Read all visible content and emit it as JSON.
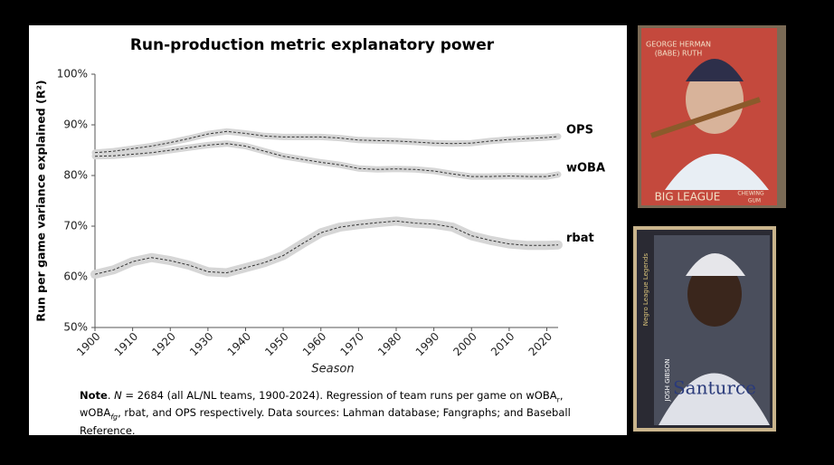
{
  "chart_data": {
    "type": "line",
    "title": "Run-production metric explanatory power",
    "x_label": "Season",
    "y_label": "Run per game variance explained (R²)",
    "x": [
      1900,
      1905,
      1910,
      1915,
      1920,
      1925,
      1930,
      1935,
      1940,
      1945,
      1950,
      1955,
      1960,
      1965,
      1970,
      1975,
      1980,
      1985,
      1990,
      1995,
      2000,
      2005,
      2010,
      2015,
      2020,
      2023
    ],
    "series": [
      {
        "name": "OPS",
        "color": "#333333",
        "values": [
          84.5,
          84.8,
          85.3,
          85.8,
          86.5,
          87.3,
          88.2,
          88.7,
          88.3,
          87.8,
          87.6,
          87.6,
          87.6,
          87.4,
          87.0,
          86.9,
          86.8,
          86.6,
          86.4,
          86.3,
          86.4,
          86.8,
          87.1,
          87.3,
          87.5,
          87.7
        ]
      },
      {
        "name": "wOBA",
        "color": "#333333",
        "values": [
          83.8,
          83.9,
          84.2,
          84.5,
          85.0,
          85.5,
          86.0,
          86.3,
          85.8,
          84.8,
          83.8,
          83.2,
          82.6,
          82.1,
          81.4,
          81.2,
          81.3,
          81.2,
          80.9,
          80.3,
          79.8,
          79.8,
          79.9,
          79.8,
          79.8,
          80.2
        ]
      },
      {
        "name": "rbat",
        "color": "#333333",
        "values": [
          60.5,
          61.4,
          63.0,
          63.8,
          63.2,
          62.3,
          61.0,
          60.8,
          61.8,
          62.8,
          64.2,
          66.5,
          68.7,
          69.8,
          70.3,
          70.7,
          71.0,
          70.6,
          70.4,
          69.8,
          68.1,
          67.2,
          66.5,
          66.2,
          66.2,
          66.3
        ]
      }
    ],
    "xlim": [
      1900,
      2023
    ],
    "xticks": [
      1900,
      1910,
      1920,
      1930,
      1940,
      1950,
      1960,
      1970,
      1980,
      1990,
      2000,
      2010,
      2020
    ],
    "ylim": [
      50,
      100
    ],
    "yticks": [
      {
        "value": 50,
        "label": "50%"
      },
      {
        "value": 60,
        "label": "60%"
      },
      {
        "value": 70,
        "label": "70%"
      },
      {
        "value": 80,
        "label": "80%"
      },
      {
        "value": 90,
        "label": "90%"
      },
      {
        "value": 100,
        "label": "100%"
      }
    ],
    "grid": false,
    "note": [
      "Note",
      ". ",
      "N",
      " = 2684 (all AL/NL teams, 1900-2024). Regression of team runs per game on wOBA",
      "r",
      ", wOBA",
      "fg",
      ", rbat, and OPS respectively. Data sources: Lahman database; Fangraphs; and  Baseball Reference."
    ]
  },
  "cards": [
    {
      "lines": [
        "GEORGE HERMAN",
        "(BABE) RUTH"
      ],
      "footer": "BIG LEAGUE",
      "footer_small": [
        "CHEWING",
        "GUM"
      ]
    },
    {
      "side": "JOSH GIBSON",
      "banner": "Negro League Legends",
      "jersey": "Santurce"
    }
  ]
}
